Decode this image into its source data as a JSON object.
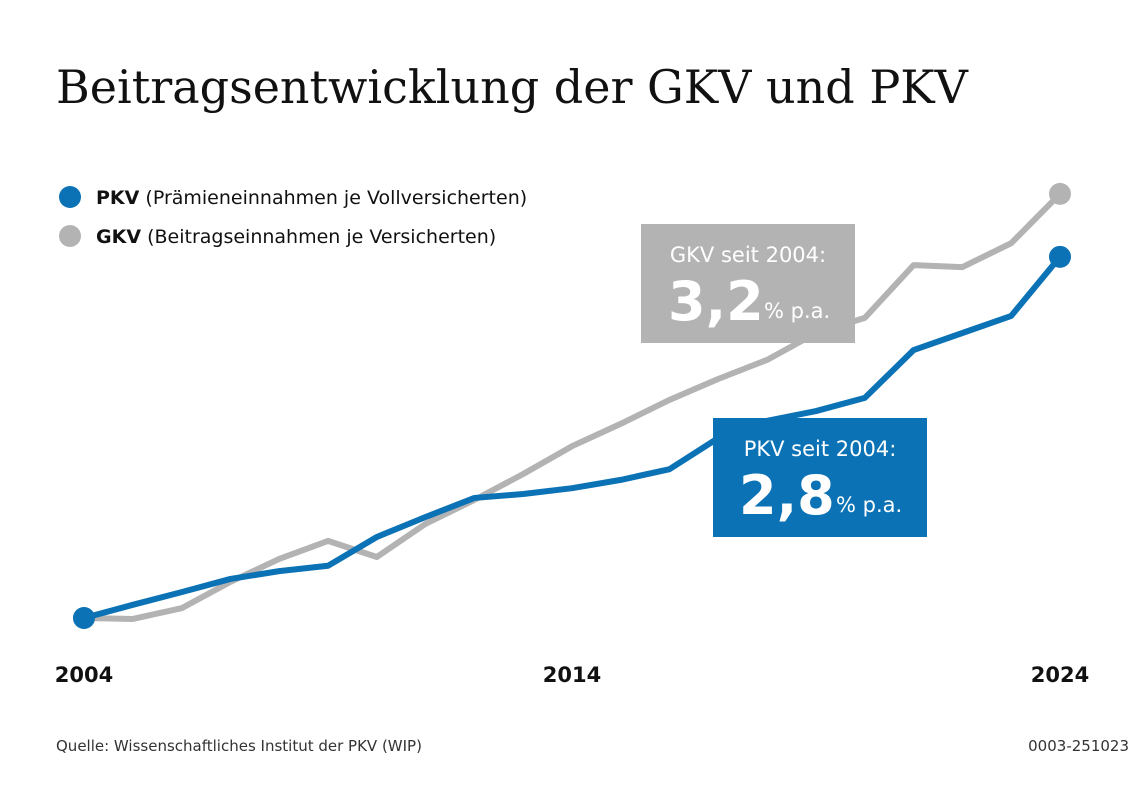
{
  "chart_data": {
    "type": "line",
    "title": "Beitragsentwicklung der GKV und PKV",
    "x": [
      2004,
      2005,
      2006,
      2007,
      2008,
      2009,
      2010,
      2011,
      2012,
      2013,
      2014,
      2015,
      2016,
      2017,
      2018,
      2019,
      2020,
      2021,
      2022,
      2023,
      2024
    ],
    "xlim": [
      2004,
      2024
    ],
    "xticks": [
      2004,
      2014,
      2024
    ],
    "ylim": [
      100,
      187
    ],
    "series": [
      {
        "name": "PKV",
        "description": "(Prämieneinnahmen je Vollversicherten)",
        "color": "#0a72b5",
        "values": [
          100,
          102.7,
          105.3,
          108.0,
          109.6,
          110.7,
          116.6,
          120.7,
          124.6,
          125.4,
          126.6,
          128.3,
          130.5,
          136.9,
          140.4,
          142.4,
          145.1,
          154.9,
          158.4,
          161.9,
          174.0
        ]
      },
      {
        "name": "GKV",
        "description": "(Beitragseinnahmen je Versicherten)",
        "color": "#b3b3b3",
        "values": [
          100,
          99.8,
          102.0,
          107.4,
          112.1,
          115.8,
          112.5,
          119.3,
          124.2,
          129.5,
          135.2,
          139.8,
          144.7,
          149.0,
          152.9,
          158.4,
          161.5,
          172.3,
          171.9,
          176.8,
          186.9
        ]
      }
    ],
    "annotations": [
      {
        "heading": "GKV seit 2004:",
        "figure": "3,2",
        "unit": "% p.a."
      },
      {
        "heading": "PKV seit 2004:",
        "figure": "2,8",
        "unit": "% p.a."
      }
    ],
    "source": "Quelle: Wissenschaftliches Institut der PKV (WIP)",
    "code": "0003-251023"
  }
}
